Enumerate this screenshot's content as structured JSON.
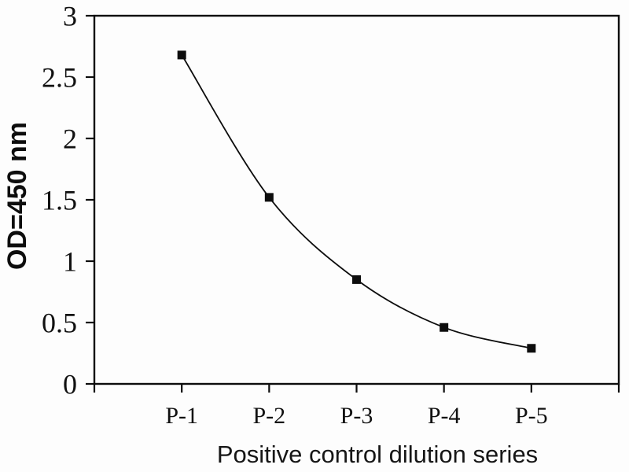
{
  "figure": {
    "background": "#fdfdfd",
    "ink_color": "#0d0d0d"
  },
  "chart_data": {
    "type": "line",
    "title": "",
    "xlabel": "Positive control dilution series",
    "ylabel": "OD=450 nm",
    "categories": [
      "P-1",
      "P-2",
      "P-3",
      "P-4",
      "P-5"
    ],
    "values": [
      2.68,
      1.52,
      0.85,
      0.46,
      0.29
    ],
    "ylim": [
      0,
      3
    ],
    "yticks": [
      0,
      0.5,
      1,
      1.5,
      2,
      2.5,
      3
    ],
    "ytick_labels": [
      "0",
      "0.5",
      "1",
      "1.5",
      "2",
      "2.5",
      "3"
    ],
    "grid": false,
    "legend": "none",
    "frame": true,
    "line_style": "solid-smooth",
    "line_color": "#0d0d0d",
    "marker": "filled-square",
    "marker_color": "#0d0d0d"
  }
}
